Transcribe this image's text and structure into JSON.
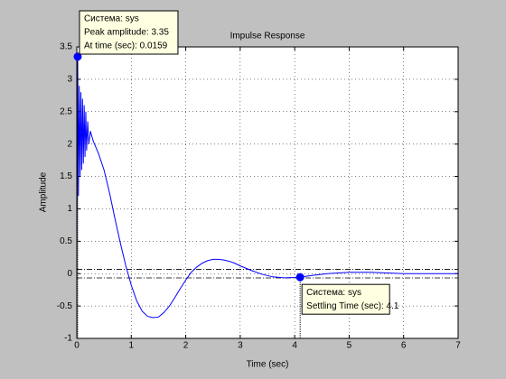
{
  "chart_data": {
    "type": "line",
    "title": "Impulse Response",
    "xlabel": "Time (sec)",
    "ylabel": "Amplitude",
    "x": [
      0,
      0.0159,
      0.03,
      0.045,
      0.06,
      0.075,
      0.09,
      0.105,
      0.12,
      0.135,
      0.15,
      0.165,
      0.18,
      0.2,
      0.22,
      0.25,
      0.3,
      0.4,
      0.5,
      0.6,
      0.7,
      0.8,
      0.9,
      1.0,
      1.1,
      1.2,
      1.3,
      1.4,
      1.5,
      1.6,
      1.7,
      1.8,
      1.9,
      2.0,
      2.1,
      2.2,
      2.3,
      2.4,
      2.5,
      2.6,
      2.7,
      2.8,
      2.9,
      3.0,
      3.2,
      3.4,
      3.6,
      3.8,
      4.0,
      4.1,
      4.3,
      4.6,
      5.0,
      5.4,
      6.0,
      7.0
    ],
    "series": [
      {
        "color": "#0000ff",
        "values": [
          0,
          3.35,
          1.2,
          2.9,
          1.5,
          2.8,
          1.6,
          2.7,
          1.7,
          2.6,
          1.8,
          2.5,
          1.9,
          2.35,
          2.0,
          2.2,
          2.05,
          1.85,
          1.6,
          1.25,
          0.85,
          0.47,
          0.12,
          -0.18,
          -0.42,
          -0.58,
          -0.66,
          -0.68,
          -0.67,
          -0.6,
          -0.5,
          -0.37,
          -0.23,
          -0.1,
          0.02,
          0.1,
          0.16,
          0.2,
          0.22,
          0.22,
          0.21,
          0.19,
          0.16,
          0.12,
          0.05,
          -0.01,
          -0.05,
          -0.065,
          -0.06,
          -0.055,
          -0.03,
          0.0,
          0.02,
          0.02,
          0.0,
          0.0
        ]
      }
    ],
    "xlim": [
      0,
      7
    ],
    "xticks": [
      0,
      1,
      2,
      3,
      4,
      5,
      6,
      7
    ],
    "ylim": [
      -1,
      3.5
    ],
    "yticks": [
      -1,
      -0.5,
      0,
      0.5,
      1,
      1.5,
      2,
      2.5,
      3,
      3.5
    ],
    "grid": true,
    "settling_bounds": [
      -0.067,
      0.067
    ],
    "annotations": [
      {
        "x": 0.0159,
        "y": 3.35,
        "lines": [
          "Система: sys",
          "Peak amplitude: 3.35",
          "At time (sec): 0.0159"
        ]
      },
      {
        "x": 4.1,
        "y": -0.055,
        "lines": [
          "Система: sys",
          "Settling Time (sec): 4.1"
        ]
      }
    ]
  }
}
